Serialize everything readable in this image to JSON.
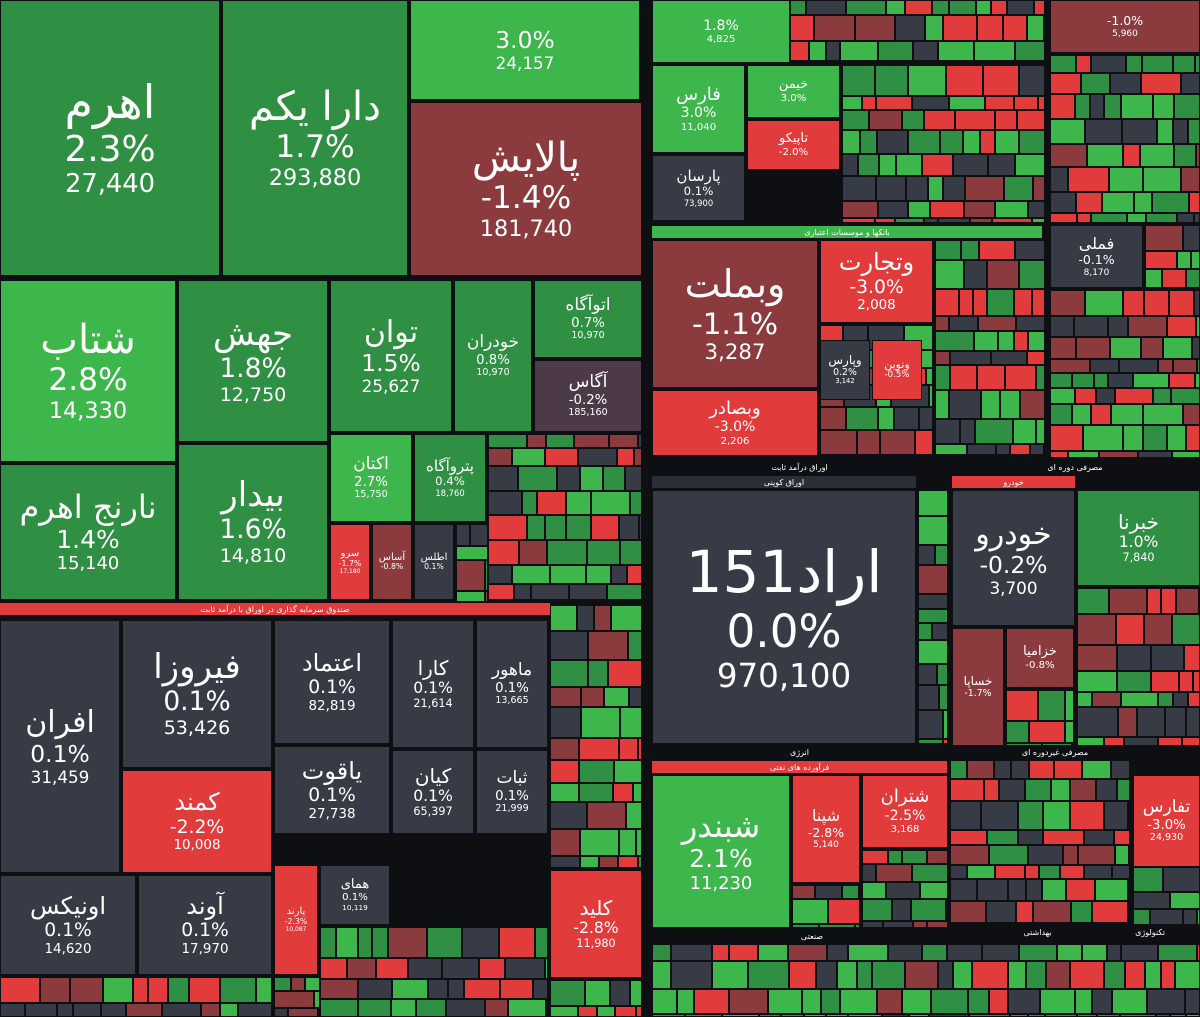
{
  "tiles": [
    {
      "change": "3.0%",
      "value": "24,157"
    },
    {
      "name": "اهرم",
      "change": "2.3%",
      "value": "27,440"
    },
    {
      "name": "دارا یکم",
      "change": "1.7%",
      "value": "293,880"
    },
    {
      "name": "پالایش",
      "change": "-1.4%",
      "value": "181,740"
    },
    {
      "name": "شتاب",
      "change": "2.8%",
      "value": "14,330"
    },
    {
      "name": "نارنج اهرم",
      "change": "1.4%",
      "value": "15,140"
    },
    {
      "name": "جهش",
      "change": "1.8%",
      "value": "12,750"
    },
    {
      "name": "بیدار",
      "change": "1.6%",
      "value": "14,810"
    },
    {
      "name": "توان",
      "change": "1.5%",
      "value": "25,627"
    },
    {
      "name": "خودران",
      "change": "0.8%",
      "value": "10,970"
    },
    {
      "name": "اتوآگاه",
      "change": "0.7%",
      "value": "10,970"
    },
    {
      "name": "آگاس",
      "change": "-0.2%",
      "value": "185,160"
    },
    {
      "name": "اکتان",
      "change": "2.7%",
      "value": "15,750"
    },
    {
      "name": "پتروآگاه",
      "change": "0.4%",
      "value": "18,760"
    },
    {
      "name": "سرو",
      "change": "-1.7%",
      "value": "17,180"
    },
    {
      "name": "آساس",
      "change": "-0.8%"
    },
    {
      "name": "اطلس",
      "change": "0.1%"
    },
    {
      "name": "افران",
      "change": "0.1%",
      "value": "31,459"
    },
    {
      "name": "فیروزا",
      "change": "0.1%",
      "value": "53,426"
    },
    {
      "name": "کمند",
      "change": "-2.2%",
      "value": "10,008"
    },
    {
      "name": "اعتماد",
      "change": "0.1%",
      "value": "82,819"
    },
    {
      "name": "یاقوت",
      "change": "0.1%",
      "value": "27,738"
    },
    {
      "name": "کارا",
      "change": "0.1%",
      "value": "21,614"
    },
    {
      "name": "کیان",
      "change": "0.1%",
      "value": "65,397"
    },
    {
      "name": "ماهور",
      "change": "0.1%",
      "value": "13,665"
    },
    {
      "name": "ثبات",
      "change": "0.1%",
      "value": "21,999"
    },
    {
      "name": "اونیکس",
      "change": "0.1%",
      "value": "14,620"
    },
    {
      "name": "آوند",
      "change": "0.1%",
      "value": "17,970"
    },
    {
      "name": "پارند",
      "change": "-2.3%",
      "value": "10,087"
    },
    {
      "name": "همای",
      "change": "0.1%",
      "value": "10,119"
    },
    {
      "name": "کلید",
      "change": "-2.8%",
      "value": "11,980"
    },
    {
      "change": "1.8%",
      "value": "4,825"
    },
    {
      "change": "-1.0%",
      "value": "5,960"
    },
    {
      "name": "فارس",
      "change": "3.0%",
      "value": "11,040"
    },
    {
      "name": "پارسان",
      "change": "0.1%",
      "value": "73,900"
    },
    {
      "name": "خیمن",
      "change": "3.0%"
    },
    {
      "name": "تاپیکو",
      "change": "-2.0%"
    },
    {
      "name": "فملی",
      "change": "-0.1%",
      "value": "8,170"
    },
    {
      "name": "وبملت",
      "change": "-1.1%",
      "value": "3,287"
    },
    {
      "name": "وتجارت",
      "change": "-3.0%",
      "value": "2,008"
    },
    {
      "name": "وبصادر",
      "change": "-3.0%",
      "value": "2,206"
    },
    {
      "name": "وپارس",
      "change": "0.2%",
      "value": "3,142"
    },
    {
      "name": "ونوین",
      "change": "-0.5%"
    },
    {
      "name": "اراد151",
      "change": "0.0%",
      "value": "970,100"
    },
    {
      "name": "خودرو",
      "change": "-0.2%",
      "value": "3,700"
    },
    {
      "name": "خبرنا",
      "change": "1.0%",
      "value": "7,840"
    },
    {
      "name": "خساپا",
      "change": "-1.7%"
    },
    {
      "name": "خزامیا",
      "change": "-0.8%"
    },
    {
      "name": "شبندر",
      "change": "2.1%",
      "value": "11,230"
    },
    {
      "name": "شپنا",
      "change": "-2.8%",
      "value": "5,140"
    },
    {
      "name": "شتران",
      "change": "-2.5%",
      "value": "3,168"
    },
    {
      "name": "تفارس",
      "change": "-3.0%",
      "value": "24,930"
    }
  ],
  "section_headers": [
    "صندوق سرمایه گذاری در اوراق با درآمد ثابت",
    "بانکها و موسسات اعتباری",
    "اوراق درآمد ثابت",
    "اوراق کوپنی",
    "مصرفی دوره ای",
    "خودرو",
    "انرژی",
    "فرآورده های نفتی",
    "مصرفی غیردوره ای",
    "صنعتی",
    "بهداشتی",
    "تکنولوژی"
  ]
}
